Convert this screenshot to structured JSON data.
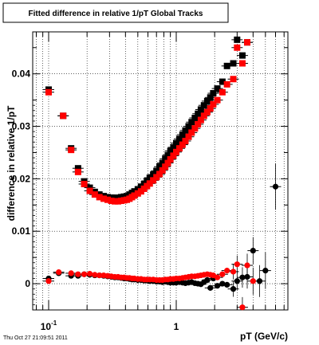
{
  "chart_data": {
    "type": "scatter",
    "title": "Fitted difference in relative 1/pT  Global Tracks",
    "xlabel": "pT (GeV/c)",
    "ylabel": "difference in relative 1/pT",
    "x_scale": "log",
    "xlim": [
      0.075,
      7.5
    ],
    "ylim": [
      -0.005,
      0.048
    ],
    "grid": true,
    "x_ticks": [
      {
        "value": 0.1,
        "label": "10",
        "sup": "-1"
      },
      {
        "value": 1,
        "label": "1",
        "sup": ""
      }
    ],
    "y_ticks": [
      {
        "value": 0,
        "label": "0"
      },
      {
        "value": 0.01,
        "label": "0.01"
      },
      {
        "value": 0.02,
        "label": "0.02"
      },
      {
        "value": 0.03,
        "label": "0.03"
      },
      {
        "value": 0.04,
        "label": "0.04"
      }
    ],
    "series": [
      {
        "color": "#000000",
        "marker": "square",
        "x": [
          0.1,
          0.13,
          0.15,
          0.17,
          0.19,
          0.21,
          0.23,
          0.25,
          0.27,
          0.29,
          0.31,
          0.33,
          0.35,
          0.37,
          0.39,
          0.41,
          0.43,
          0.45,
          0.47,
          0.5,
          0.53,
          0.56,
          0.59,
          0.62,
          0.66,
          0.7,
          0.74,
          0.78,
          0.82,
          0.86,
          0.9,
          0.95,
          1.0,
          1.06,
          1.12,
          1.18,
          1.25,
          1.32,
          1.4,
          1.48,
          1.56,
          1.65,
          1.75,
          1.85,
          1.95,
          2.1,
          2.3,
          2.5,
          2.8,
          3.0,
          3.3,
          3.6
        ],
        "y": [
          0.037,
          0.032,
          0.0258,
          0.022,
          0.0195,
          0.0183,
          0.0175,
          0.017,
          0.0167,
          0.0165,
          0.0164,
          0.0164,
          0.0163,
          0.0165,
          0.0166,
          0.0167,
          0.017,
          0.0173,
          0.0176,
          0.018,
          0.0185,
          0.019,
          0.0196,
          0.0202,
          0.0208,
          0.0215,
          0.0223,
          0.023,
          0.0238,
          0.0245,
          0.0253,
          0.026,
          0.0268,
          0.0276,
          0.0284,
          0.0292,
          0.03,
          0.0308,
          0.0316,
          0.0324,
          0.0332,
          0.034,
          0.0348,
          0.0355,
          0.0363,
          0.0372,
          0.0385,
          0.0415,
          0.042,
          0.0465,
          0.0435,
          0.046
        ]
      },
      {
        "color": "#ff0000",
        "marker": "square",
        "x": [
          0.1,
          0.13,
          0.15,
          0.17,
          0.19,
          0.21,
          0.23,
          0.25,
          0.27,
          0.29,
          0.31,
          0.33,
          0.35,
          0.37,
          0.39,
          0.41,
          0.43,
          0.45,
          0.47,
          0.5,
          0.53,
          0.56,
          0.59,
          0.62,
          0.66,
          0.7,
          0.74,
          0.78,
          0.82,
          0.86,
          0.9,
          0.95,
          1.0,
          1.06,
          1.12,
          1.18,
          1.25,
          1.32,
          1.4,
          1.48,
          1.56,
          1.65,
          1.75,
          1.85,
          1.95,
          2.1,
          2.3,
          2.5,
          2.8,
          3.0,
          3.3,
          3.6
        ],
        "y": [
          0.0365,
          0.032,
          0.0255,
          0.0213,
          0.019,
          0.0177,
          0.017,
          0.0165,
          0.0162,
          0.016,
          0.0158,
          0.0157,
          0.0157,
          0.0158,
          0.0159,
          0.016,
          0.0162,
          0.0165,
          0.0168,
          0.0172,
          0.0176,
          0.0181,
          0.0186,
          0.0191,
          0.0197,
          0.0203,
          0.0209,
          0.0216,
          0.0223,
          0.023,
          0.0237,
          0.0244,
          0.0251,
          0.0258,
          0.0265,
          0.0272,
          0.028,
          0.0288,
          0.0296,
          0.0304,
          0.0312,
          0.032,
          0.0327,
          0.0334,
          0.0342,
          0.035,
          0.0365,
          0.038,
          0.039,
          0.045,
          0.042,
          0.046
        ]
      },
      {
        "color": "#000000",
        "marker": "circle",
        "x": [
          0.1,
          0.12,
          0.15,
          0.17,
          0.19,
          0.21,
          0.23,
          0.25,
          0.27,
          0.29,
          0.31,
          0.33,
          0.35,
          0.37,
          0.39,
          0.41,
          0.43,
          0.45,
          0.47,
          0.5,
          0.53,
          0.56,
          0.59,
          0.62,
          0.66,
          0.7,
          0.74,
          0.78,
          0.82,
          0.86,
          0.9,
          0.95,
          1.0,
          1.06,
          1.12,
          1.18,
          1.25,
          1.32,
          1.4,
          1.48,
          1.56,
          1.65,
          1.75,
          1.85,
          1.95,
          2.1,
          2.3,
          2.5,
          2.8,
          3.0,
          3.3,
          3.6,
          4.0,
          4.5,
          5.0,
          6.0
        ],
        "y": [
          0.001,
          0.002,
          0.0015,
          0.0015,
          0.0018,
          0.0017,
          0.0016,
          0.0016,
          0.0015,
          0.0014,
          0.0013,
          0.0012,
          0.0012,
          0.0011,
          0.001,
          0.001,
          0.0009,
          0.0008,
          0.0008,
          0.0007,
          0.0007,
          0.0006,
          0.0006,
          0.0005,
          0.0005,
          0.0004,
          0.0004,
          0.0003,
          0.0004,
          0.0003,
          0.0002,
          0.0002,
          0.0002,
          0.0003,
          0.0002,
          0.0001,
          0.0002,
          0.0003,
          0.0001,
          0.0,
          -0.0001,
          0.0003,
          0.0007,
          -0.0008,
          0.001,
          -0.0004,
          0.0,
          -0.0002,
          -0.001,
          0.0005,
          0.0012,
          0.0013,
          0.0063,
          0.0005,
          0.0025,
          0.0185
        ]
      },
      {
        "color": "#ff0000",
        "marker": "circle",
        "x": [
          0.1,
          0.12,
          0.15,
          0.17,
          0.19,
          0.21,
          0.23,
          0.25,
          0.27,
          0.29,
          0.31,
          0.33,
          0.35,
          0.37,
          0.39,
          0.41,
          0.43,
          0.45,
          0.47,
          0.5,
          0.53,
          0.56,
          0.59,
          0.62,
          0.66,
          0.7,
          0.74,
          0.78,
          0.82,
          0.86,
          0.9,
          0.95,
          1.0,
          1.06,
          1.12,
          1.18,
          1.25,
          1.32,
          1.4,
          1.48,
          1.56,
          1.65,
          1.75,
          1.85,
          1.95,
          2.1,
          2.3,
          2.5,
          2.8,
          3.0,
          3.3,
          3.6,
          4.0
        ],
        "y": [
          0.0005,
          0.0022,
          0.002,
          0.0018,
          0.0018,
          0.0019,
          0.0017,
          0.0016,
          0.0016,
          0.0015,
          0.0014,
          0.0013,
          0.0013,
          0.0012,
          0.0012,
          0.0011,
          0.0011,
          0.001,
          0.001,
          0.0009,
          0.0009,
          0.0008,
          0.0008,
          0.0008,
          0.0008,
          0.0007,
          0.0007,
          0.0007,
          0.0008,
          0.0008,
          0.0009,
          0.0009,
          0.001,
          0.001,
          0.0011,
          0.0012,
          0.0013,
          0.0014,
          0.0014,
          0.0015,
          0.0016,
          0.0017,
          0.0018,
          0.0017,
          0.0016,
          0.0012,
          0.0018,
          0.0025,
          0.0023,
          0.0037,
          -0.0045,
          0.0035,
          0.0005
        ]
      }
    ]
  },
  "footer": {
    "timestamp": "Thu Oct 27 21:09:51 2011"
  }
}
